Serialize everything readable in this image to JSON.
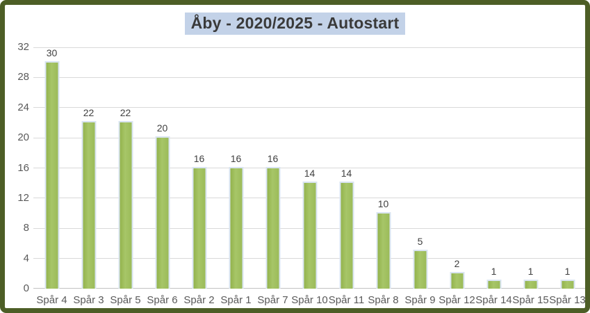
{
  "window": {
    "border_color": "#4d5e26",
    "background_color": "#ffffff"
  },
  "title": {
    "text": "Åby - 2020/2025 - Autostart",
    "highlight_color": "#c3d2e8",
    "text_color": "#3a3a3a"
  },
  "chart_data": {
    "type": "bar",
    "title": "Åby - 2020/2025 - Autostart",
    "categories": [
      "Spår 4",
      "Spår 3",
      "Spår 5",
      "Spår 6",
      "Spår 2",
      "Spår 1",
      "Spår 7",
      "Spår 10",
      "Spår 11",
      "Spår 8",
      "Spår 9",
      "Spår 12",
      "Spår 14",
      "Spår 15",
      "Spår 13"
    ],
    "values": [
      30,
      22,
      22,
      20,
      16,
      16,
      16,
      14,
      14,
      10,
      5,
      2,
      1,
      1,
      1
    ],
    "xlabel": "",
    "ylabel": "",
    "ylim": [
      0,
      32
    ],
    "yticks": [
      0,
      4,
      8,
      12,
      16,
      20,
      24,
      28,
      32
    ],
    "grid": true,
    "legend": false,
    "data_labels": true,
    "bar_color": "#9bbb59",
    "bar_border_color": "#d9e4f1",
    "gridline_color": "#d9d9d9",
    "axis_label_color": "#595959",
    "value_label_color": "#3f3f3f"
  }
}
